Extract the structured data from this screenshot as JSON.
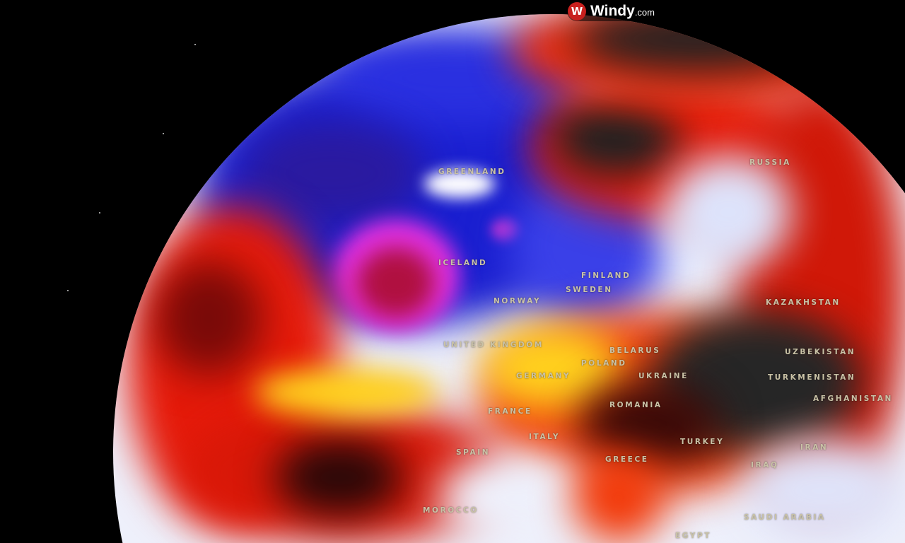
{
  "brand": {
    "name": "Windy",
    "suffix": ".com",
    "icon": "windy-logo-icon",
    "color": "#c8201e"
  },
  "map": {
    "view": "globe",
    "layer_colors": {
      "cold": "#1a1fd0",
      "very_cold": "#e030e0",
      "neutral": "#eef0fb",
      "warm": "#ffd21e",
      "hot": "#e51a0a",
      "very_hot": "#2a2a2a"
    },
    "labels": {
      "greenland": "GREENLAND",
      "iceland": "ICELAND",
      "finland": "FINLAND",
      "norway": "NORWAY",
      "sweden": "SWEDEN",
      "united_kingdom": "UNITED KINGDOM",
      "germany": "GERMANY",
      "poland": "POLAND",
      "belarus": "BELARUS",
      "ukraine": "UKRAINE",
      "romania": "ROMANIA",
      "france": "FRANCE",
      "spain": "SPAIN",
      "italy": "ITALY",
      "greece": "GREECE",
      "turkey": "TURKEY",
      "morocco": "MOROCCO",
      "egypt": "EGYPT",
      "iraq": "IRAQ",
      "iran": "IRAN",
      "saudi_arabia": "SAUDI ARABIA",
      "russia": "RUSSIA",
      "kazakhstan": "KAZAKHSTAN",
      "uzbekistan": "UZBEKISTAN",
      "turkmenistan": "TURKMENISTAN",
      "afghanistan": "AFGHANISTAN"
    }
  }
}
